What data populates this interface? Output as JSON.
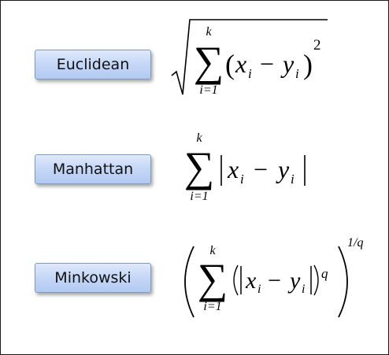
{
  "labels": {
    "euclidean": "Euclidean",
    "manhattan": "Manhattan",
    "minkowski": "Minkowski"
  },
  "formulas": {
    "euclidean": {
      "upper_limit": "k",
      "lower_limit": "i=1",
      "open_paren": "(",
      "x_var": "x",
      "x_sub": "i",
      "minus": "−",
      "y_var": "y",
      "y_sub": "i",
      "close_paren": ")",
      "exponent": "2"
    },
    "manhattan": {
      "upper_limit": "k",
      "lower_limit": "i=1",
      "x_var": "x",
      "x_sub": "i",
      "minus": "−",
      "y_var": "y",
      "y_sub": "i"
    },
    "minkowski": {
      "upper_limit": "k",
      "lower_limit": "i=1",
      "x_var": "x",
      "x_sub": "i",
      "minus": "−",
      "y_var": "y",
      "y_sub": "i",
      "inner_exponent": "q",
      "outer_exponent": "1/q"
    }
  }
}
